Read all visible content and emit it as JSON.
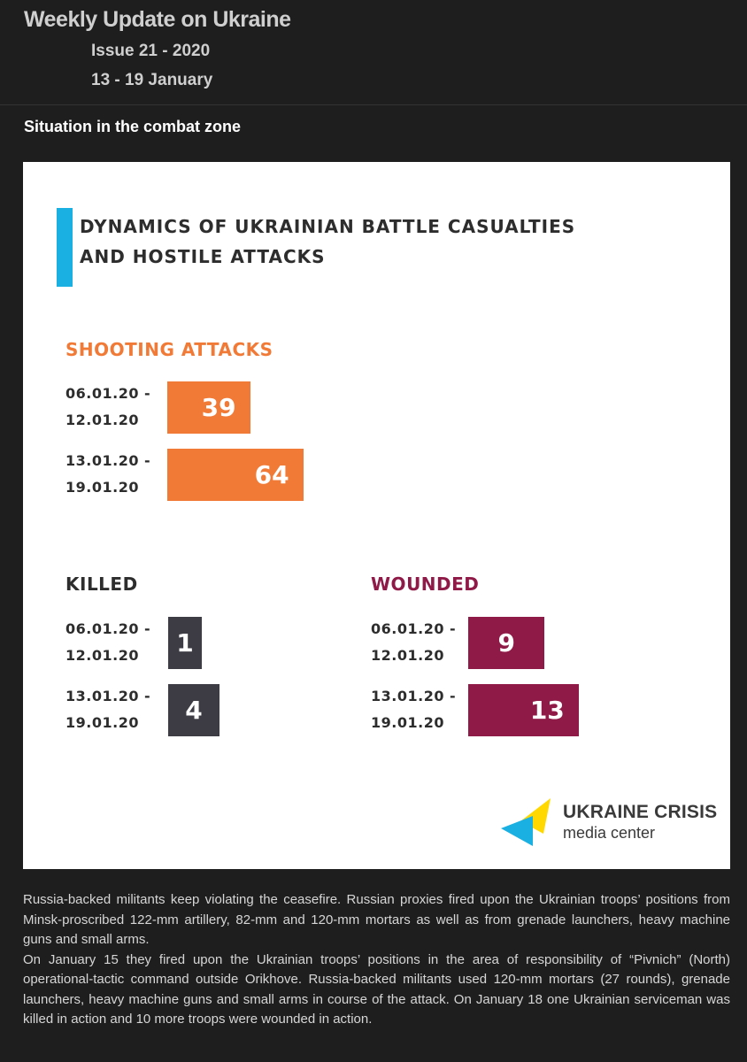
{
  "header": {
    "title": "Weekly Update on Ukraine",
    "issue": "Issue 21 - 2020",
    "dates": "13 - 19 January"
  },
  "section": {
    "title": "Situation in the combat zone"
  },
  "infographic": {
    "heading_line1": "DYNAMICS OF UKRAINIAN BATTLE CASUALTIES",
    "heading_line2": "AND HOSTILE ATTACKS",
    "logo_line1": "UKRAINE CRISIS",
    "logo_line2": "media center"
  },
  "colors": {
    "shooting": "#f07a36",
    "killed": "#3d3c44",
    "wounded": "#901a47",
    "accent": "#1ab0e2",
    "logo_yellow": "#ffd800",
    "logo_blue": "#1ab0e2"
  },
  "chart_data": [
    {
      "type": "bar",
      "title": "SHOOTING ATTACKS",
      "categories": [
        "06.01.20 -\n12.01.20",
        "13.01.20 -\n19.01.20"
      ],
      "values": [
        39,
        64
      ]
    },
    {
      "type": "bar",
      "title": "KILLED",
      "categories": [
        "06.01.20 -\n12.01.20",
        "13.01.20 -\n19.01.20"
      ],
      "values": [
        1,
        4
      ]
    },
    {
      "type": "bar",
      "title": "WOUNDED",
      "categories": [
        "06.01.20 -\n12.01.20",
        "13.01.20 -\n19.01.20"
      ],
      "values": [
        9,
        13
      ]
    }
  ],
  "body": {
    "paragraph1": "Russia-backed militants keep violating the ceasefire. Russian proxies fired upon the Ukrainian troops’ positions from Minsk-proscribed 122-mm artillery, 82-mm and 120-mm mortars as well as from grenade launchers, heavy machine guns and small arms.",
    "paragraph2": "On January 15 they fired upon the Ukrainian troops’ positions in the area of responsibility of “Pivnich” (North) operational-tactic command outside Orikhove. Russia-backed militants used 120-mm mortars (27 rounds), grenade launchers, heavy machine guns and small arms in course of the attack. On January 18 one Ukrainian serviceman was killed in action and 10 more troops were wounded in action."
  }
}
